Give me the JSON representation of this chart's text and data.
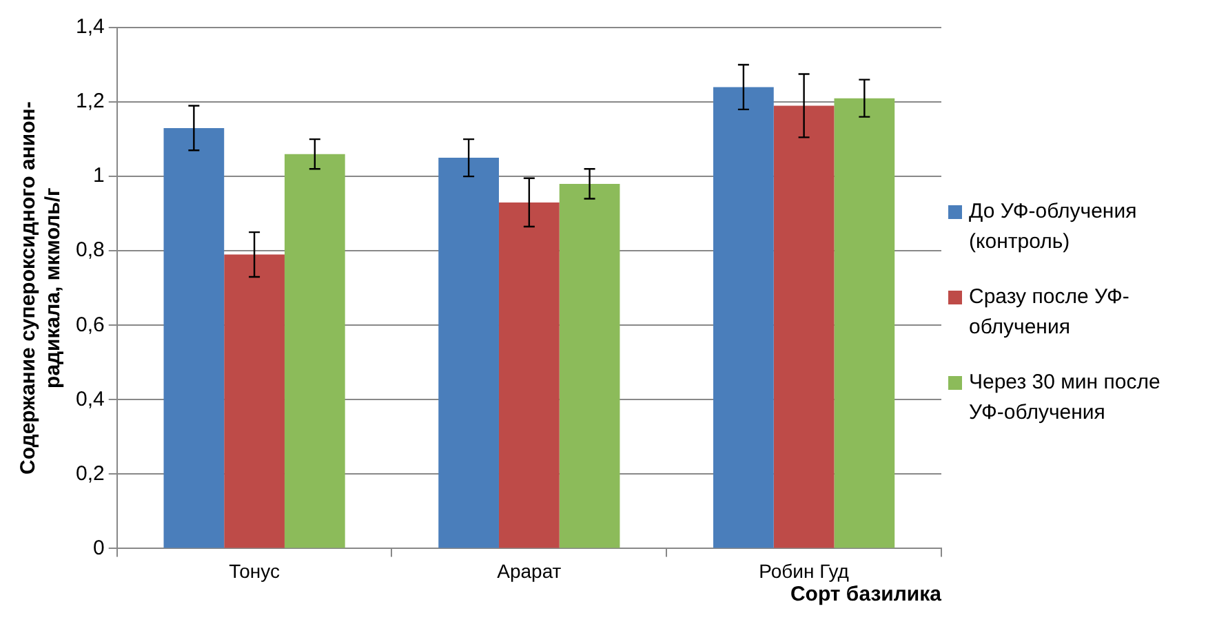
{
  "chart_data": {
    "type": "bar",
    "xlabel": "Сорт базилика",
    "ylabel": "Содержание супероксидного анион-радикала, мкмоль/г",
    "categories": [
      "Тонус",
      "Арарат",
      "Робин Гуд"
    ],
    "series": [
      {
        "name": "До УФ-облучения (контроль)",
        "color": "#4a7ebb",
        "values": [
          1.13,
          1.05,
          1.24
        ],
        "errors": [
          0.06,
          0.05,
          0.06
        ]
      },
      {
        "name": "Сразу после УФ-облучения",
        "color": "#be4b48",
        "values": [
          0.79,
          0.93,
          1.19
        ],
        "errors": [
          0.06,
          0.065,
          0.085
        ]
      },
      {
        "name": "Через 30 мин после УФ-облучения",
        "color": "#8cbb5a",
        "values": [
          1.06,
          0.98,
          1.21
        ],
        "errors": [
          0.04,
          0.04,
          0.05
        ]
      }
    ],
    "ylim": [
      0,
      1.4
    ],
    "yticks": [
      0,
      {
        "value": 0.2,
        "label": "0,2"
      },
      {
        "value": 0.4,
        "label": "0,4"
      },
      {
        "value": 0.6,
        "label": "0,6"
      },
      {
        "value": 0.8,
        "label": "0,8"
      },
      1,
      {
        "value": 1.2,
        "label": "1,2"
      },
      {
        "value": 1.4,
        "label": "1,4"
      }
    ],
    "grid": "y",
    "legend": "right"
  }
}
